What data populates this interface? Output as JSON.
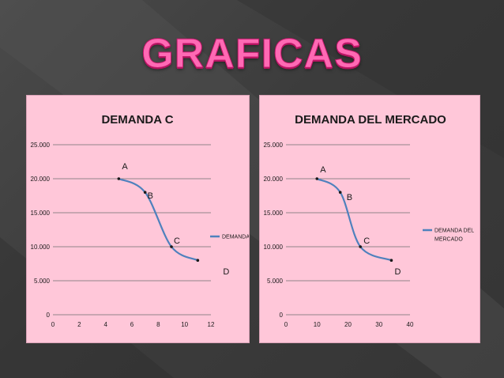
{
  "slide_title": "GRAFICAS",
  "chart_data": [
    {
      "type": "line",
      "title": "DEMANDA C",
      "xlim": [
        0,
        12
      ],
      "ylim": [
        0,
        25000
      ],
      "xticks": [
        "0",
        "2",
        "4",
        "6",
        "8",
        "10",
        "12"
      ],
      "yticks": [
        "0",
        "5.000",
        "10.000",
        "15.000",
        "20.000",
        "25.000"
      ],
      "grid": "horizontal",
      "legend_position": "right",
      "color": "#4f81bd",
      "series": [
        {
          "name": "DEMANDA C",
          "points": [
            {
              "x": 5,
              "y": 20000,
              "label": "A"
            },
            {
              "x": 7,
              "y": 18000,
              "label": "B"
            },
            {
              "x": 9,
              "y": 10000,
              "label": "C"
            },
            {
              "x": 11,
              "y": 8000,
              "label": "D"
            }
          ]
        }
      ]
    },
    {
      "type": "line",
      "title": "DEMANDA DEL MERCADO",
      "xlim": [
        0,
        40
      ],
      "ylim": [
        0,
        25000
      ],
      "xticks": [
        "0",
        "10",
        "20",
        "30",
        "40"
      ],
      "yticks": [
        "0",
        "5.000",
        "10.000",
        "15.000",
        "20.000",
        "25.000"
      ],
      "grid": "horizontal",
      "legend_position": "right",
      "color": "#4f81bd",
      "series": [
        {
          "name": "DEMANDA DEL MERCADO",
          "legend_lines": [
            "DEMANDA DEL",
            "MERCADO"
          ],
          "points": [
            {
              "x": 10,
              "y": 20000,
              "label": "A"
            },
            {
              "x": 17.5,
              "y": 18000,
              "label": "B"
            },
            {
              "x": 24,
              "y": 10000,
              "label": "C"
            },
            {
              "x": 34,
              "y": 8000,
              "label": "D"
            }
          ]
        }
      ]
    }
  ]
}
